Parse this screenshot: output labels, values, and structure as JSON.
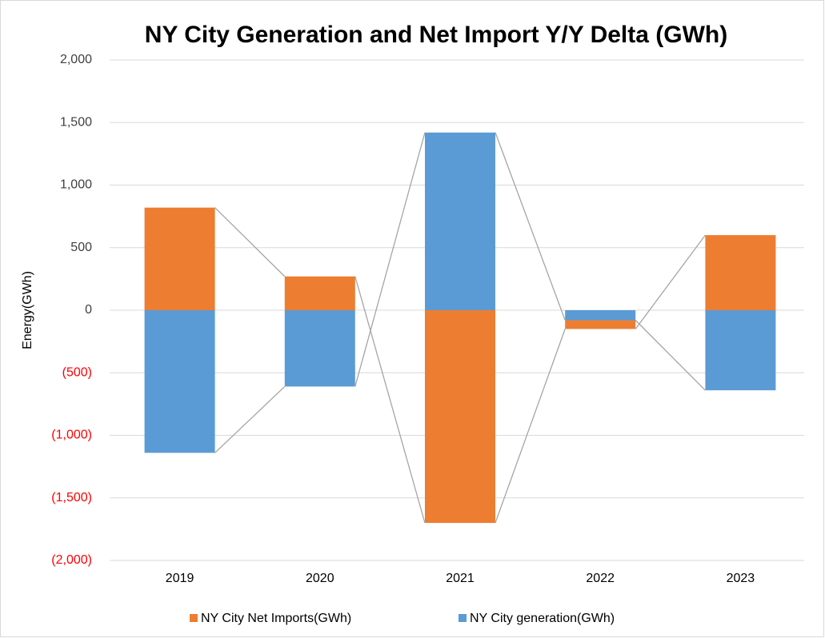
{
  "chart_data": {
    "type": "stacked_bar",
    "title": "NY City Generation and Net Import Y/Y Delta (GWh)",
    "y_label": "Energy(GWh)",
    "categories": [
      "2019",
      "2020",
      "2021",
      "2022",
      "2023"
    ],
    "series": [
      {
        "name": "NY City Net Imports(GWh)",
        "color": "#ed7d31",
        "values": [
          820,
          270,
          -1700,
          -70,
          600
        ]
      },
      {
        "name": "NY City generation(GWh)",
        "color": "#5b9bd5",
        "values": [
          -1140,
          -610,
          1420,
          -80,
          -640
        ]
      }
    ],
    "ylim": [
      -2000,
      2000
    ],
    "yticks": [
      {
        "value": -2000,
        "label": "(2,000)"
      },
      {
        "value": -1500,
        "label": "(1,500)"
      },
      {
        "value": -1000,
        "label": "(1,000)"
      },
      {
        "value": -500,
        "label": "(500)"
      },
      0,
      500,
      {
        "value": 1000,
        "label": "1,000"
      },
      {
        "value": 1500,
        "label": "1,500"
      },
      {
        "value": 2000,
        "label": "2,000"
      }
    ],
    "negative_tick_color": "#ff0000",
    "grid": true,
    "series_lines": true,
    "legend": "bottom"
  }
}
